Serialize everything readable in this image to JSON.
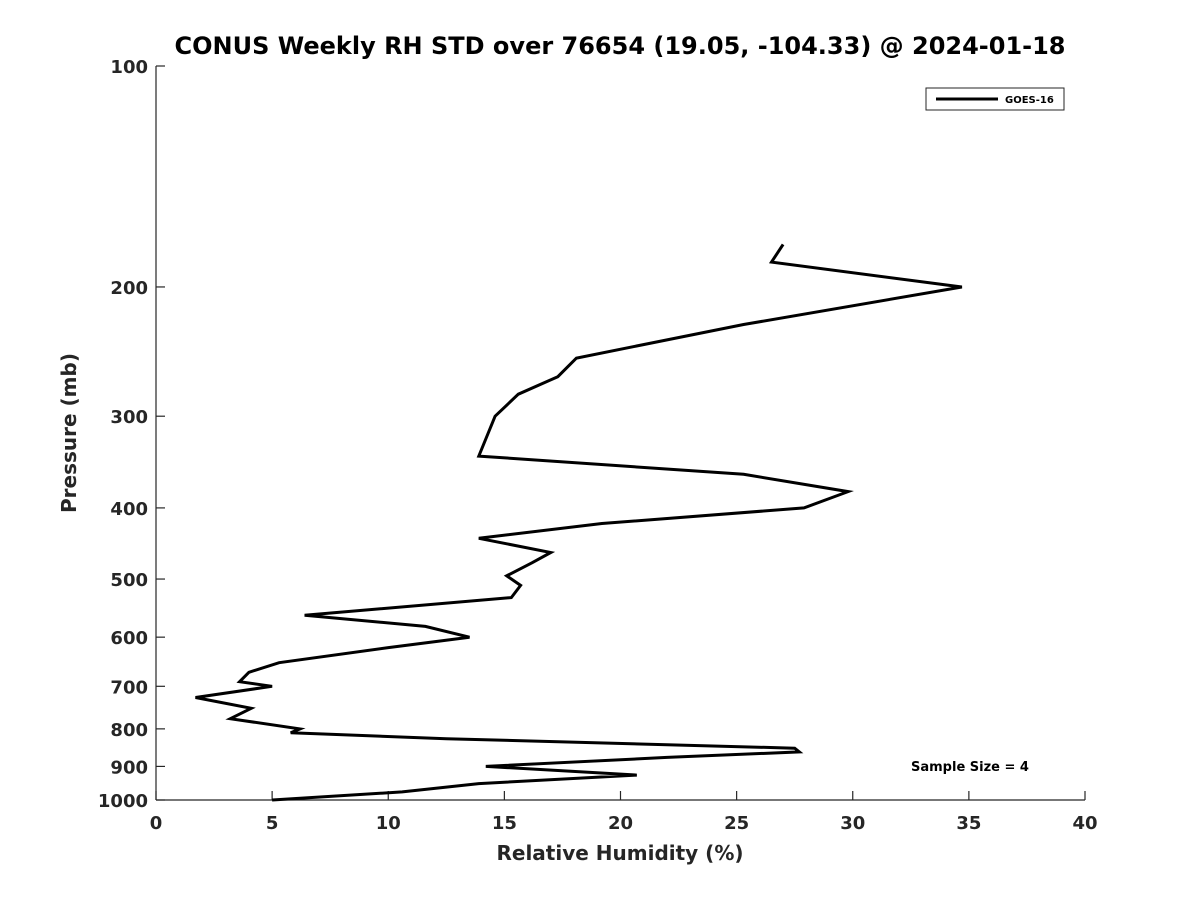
{
  "chart_data": {
    "type": "line",
    "title": "CONUS Weekly RH STD over 76654 (19.05, -104.33) @ 2024-01-18",
    "xlabel": "Relative Humidity (%)",
    "ylabel": "Pressure (mb)",
    "xlim": [
      0,
      40
    ],
    "ylim": [
      1000,
      100
    ],
    "yscale": "log",
    "y_reversed": true,
    "grid": false,
    "legend_position": "top-right",
    "line_color": "#000000",
    "x_ticks": [
      0,
      5,
      10,
      15,
      20,
      25,
      30,
      35,
      40
    ],
    "x_tick_labels": [
      "0",
      "5",
      "10",
      "15",
      "20",
      "25",
      "30",
      "35",
      "40"
    ],
    "y_ticks": [
      100,
      200,
      300,
      400,
      500,
      600,
      700,
      800,
      900,
      1000
    ],
    "y_tick_labels": [
      "100",
      "200",
      "300",
      "400",
      "500",
      "600",
      "700",
      "800",
      "900",
      "1000"
    ],
    "annotation": "Sample Size = 4",
    "series": [
      {
        "name": "GOES-16",
        "x": [
          27.0,
          26.5,
          34.7,
          25.3,
          18.1,
          17.3,
          15.6,
          14.6,
          13.9,
          25.3,
          29.8,
          27.9,
          19.2,
          13.9,
          17.0,
          16.2,
          15.1,
          15.7,
          15.3,
          6.4,
          11.6,
          13.5,
          10.0,
          5.3,
          4.0,
          3.6,
          5.0,
          1.7,
          4.1,
          3.2,
          6.2,
          5.8,
          12.5,
          27.5,
          27.7,
          22.0,
          14.2,
          20.7,
          13.9,
          10.6,
          5.0
        ],
        "y": [
          175,
          185,
          200,
          225,
          250,
          265,
          280,
          300,
          340,
          360,
          380,
          400,
          420,
          440,
          460,
          475,
          495,
          510,
          530,
          560,
          580,
          600,
          620,
          650,
          670,
          690,
          700,
          725,
          750,
          775,
          800,
          810,
          825,
          850,
          860,
          875,
          900,
          925,
          950,
          975,
          1000
        ]
      }
    ]
  }
}
